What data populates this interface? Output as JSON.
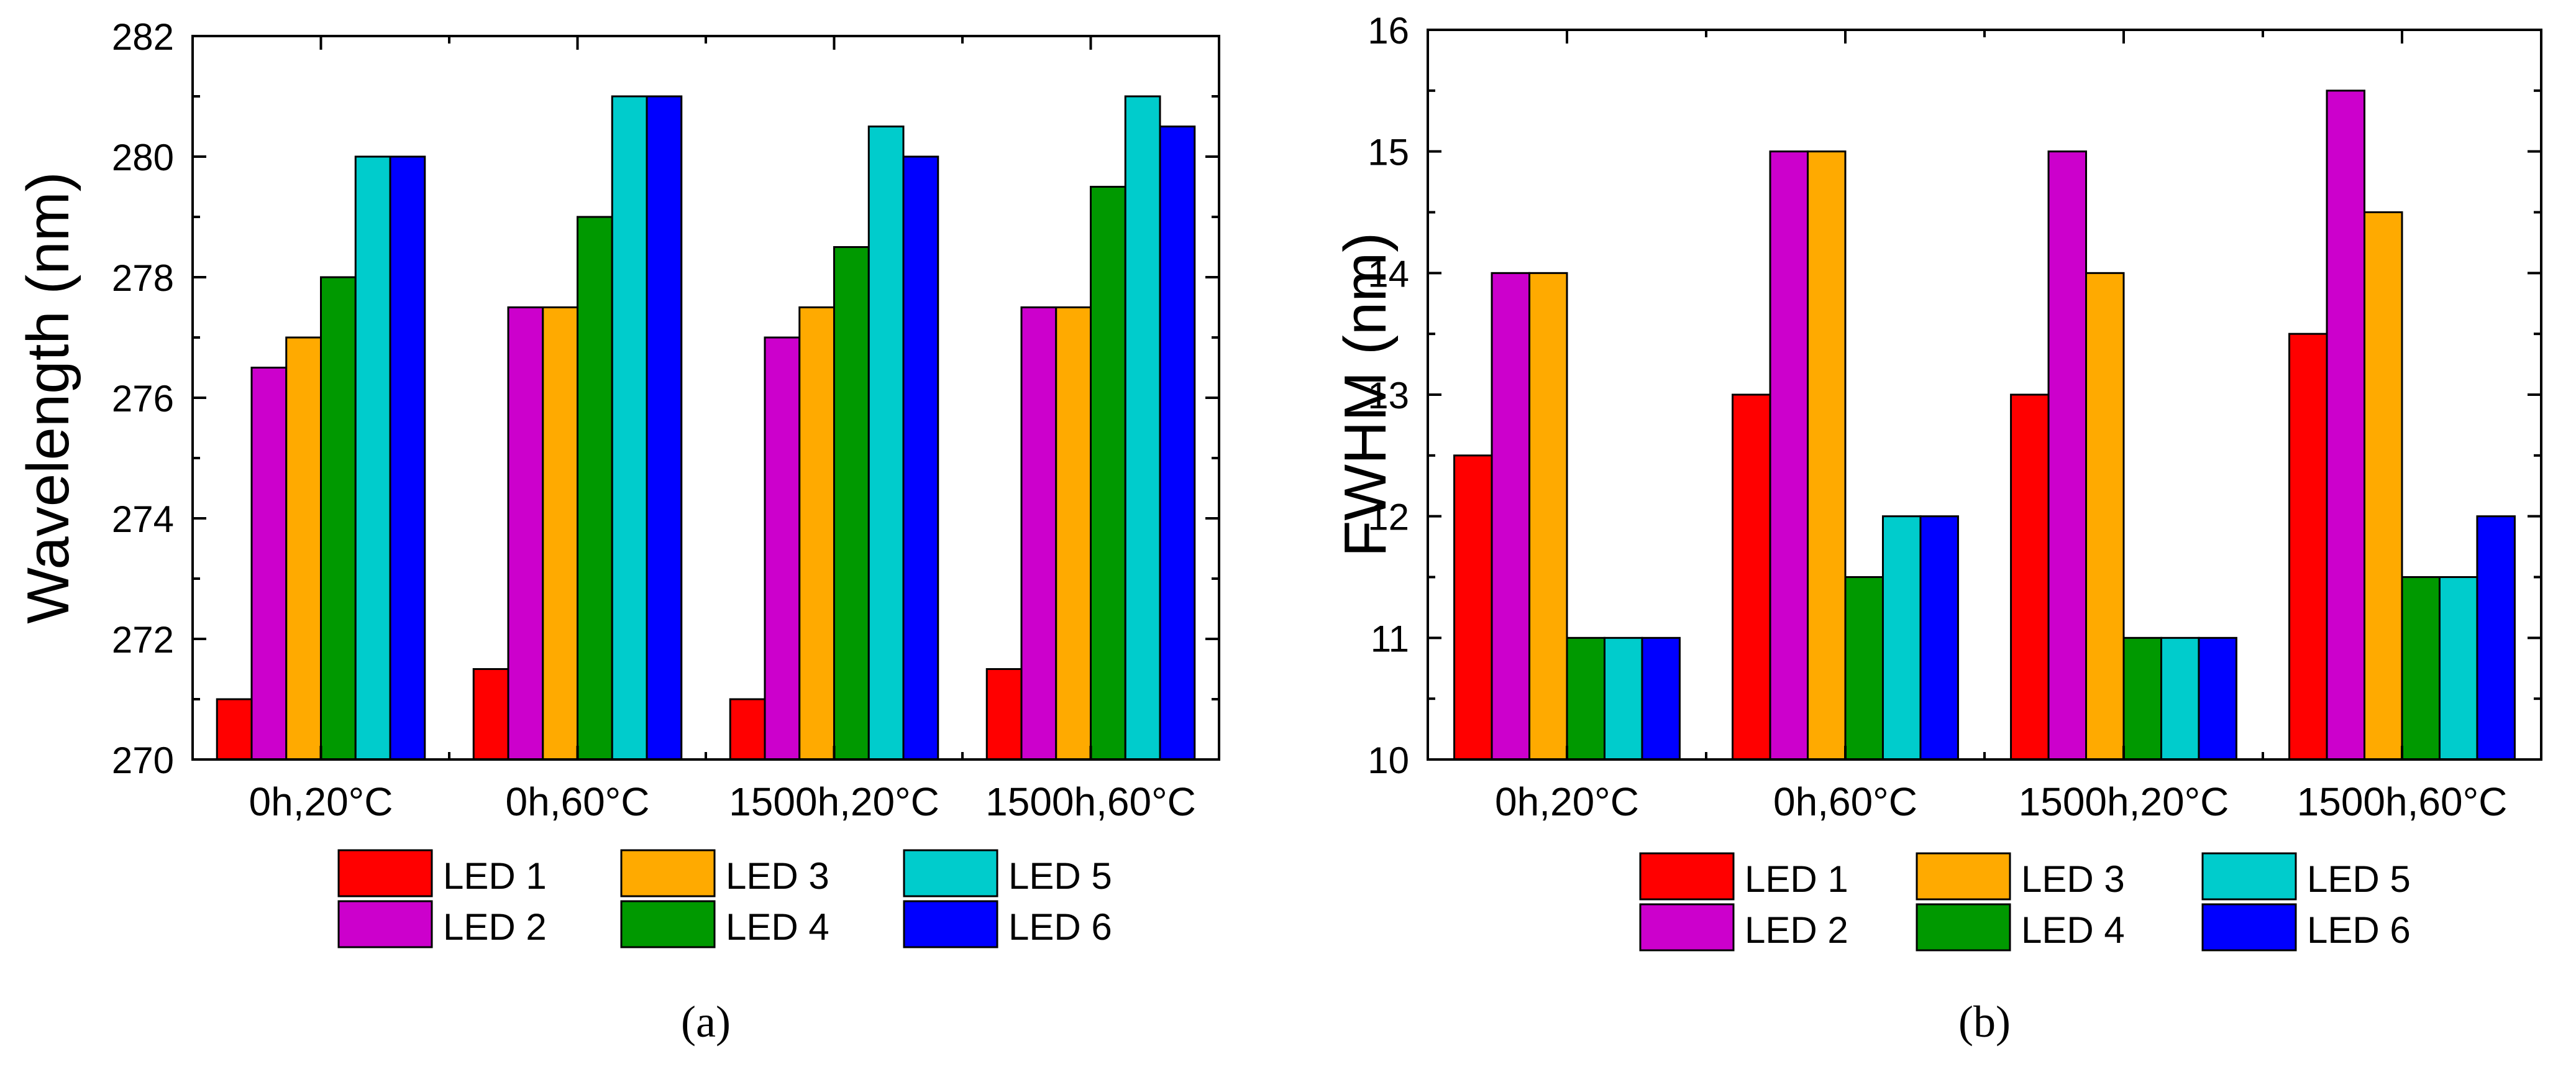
{
  "chart_data": [
    {
      "type": "bar",
      "panel_label": "(a)",
      "ylabel": "Wavelength (nm)",
      "xlabel": "",
      "ylim": [
        270,
        282
      ],
      "yticks": [
        270,
        272,
        274,
        276,
        278,
        280,
        282
      ],
      "categories": [
        "0h,20°C",
        "0h,60°C",
        "1500h,20°C",
        "1500h,60°C"
      ],
      "series": [
        {
          "name": "LED 1",
          "color": "#ff0000",
          "values": [
            271,
            271.5,
            271,
            271.5
          ]
        },
        {
          "name": "LED 2",
          "color": "#cc00cc",
          "values": [
            276.5,
            277.5,
            277,
            277.5
          ]
        },
        {
          "name": "LED 3",
          "color": "#ffaa00",
          "values": [
            277,
            277.5,
            277.5,
            277.5
          ]
        },
        {
          "name": "LED 4",
          "color": "#009900",
          "values": [
            278,
            279,
            278.5,
            279.5
          ]
        },
        {
          "name": "LED 5",
          "color": "#00cccc",
          "values": [
            280,
            281,
            280.5,
            281
          ]
        },
        {
          "name": "LED 6",
          "color": "#0000ff",
          "values": [
            280,
            281,
            280,
            280.5
          ]
        }
      ],
      "legend": "bottom"
    },
    {
      "type": "bar",
      "panel_label": "(b)",
      "ylabel": "FWHM (nm)",
      "xlabel": "",
      "ylim": [
        10,
        16
      ],
      "yticks": [
        10,
        11,
        12,
        13,
        14,
        15,
        16
      ],
      "categories": [
        "0h,20°C",
        "0h,60°C",
        "1500h,20°C",
        "1500h,60°C"
      ],
      "series": [
        {
          "name": "LED 1",
          "color": "#ff0000",
          "values": [
            12.5,
            13,
            13,
            13.5
          ]
        },
        {
          "name": "LED 2",
          "color": "#cc00cc",
          "values": [
            14,
            15,
            15,
            15.5
          ]
        },
        {
          "name": "LED 3",
          "color": "#ffaa00",
          "values": [
            14,
            15,
            14,
            14.5
          ]
        },
        {
          "name": "LED 4",
          "color": "#009900",
          "values": [
            11,
            11.5,
            11,
            11.5
          ]
        },
        {
          "name": "LED 5",
          "color": "#00cccc",
          "values": [
            11,
            12,
            11,
            11.5
          ]
        },
        {
          "name": "LED 6",
          "color": "#0000ff",
          "values": [
            11,
            12,
            11,
            12
          ]
        }
      ],
      "legend": "bottom"
    }
  ]
}
